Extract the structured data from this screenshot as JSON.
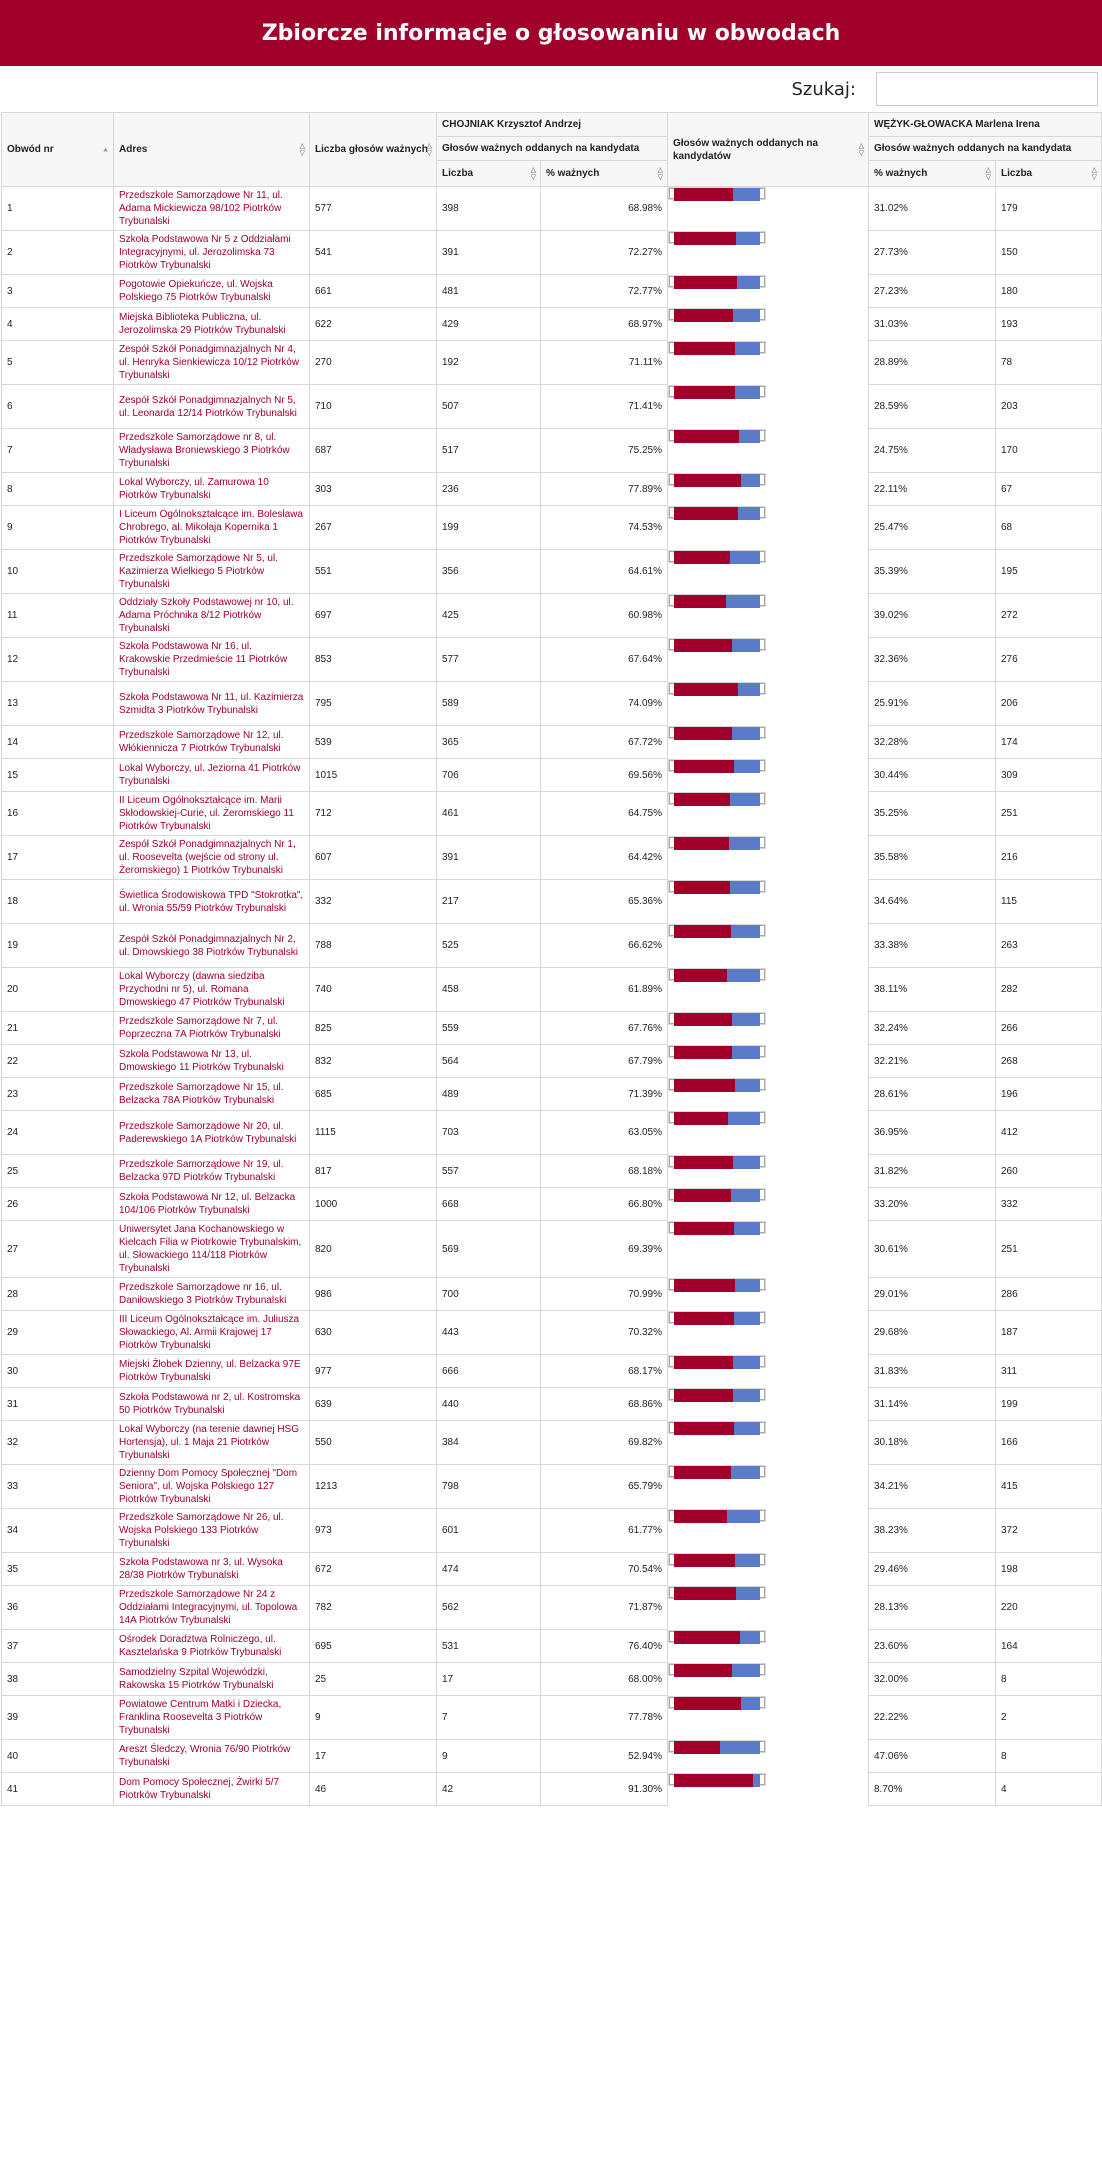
{
  "page_title": "Zbiorcze informacje o głosowaniu w obwodach",
  "search": {
    "label": "Szukaj:",
    "value": ""
  },
  "headers": {
    "obwod": "Obwód nr",
    "adres": "Adres",
    "liczba_glosow": "Liczba głosów ważnych",
    "cand1_name": "CHOJNIAK Krzysztof Andrzej",
    "cand1_sub": "Głosów ważnych oddanych na kandydata",
    "cand1_liczba": "Liczba",
    "cand1_pct": "% ważnych",
    "bar_header": "Głosów ważnych oddanych na kandydatów",
    "cand2_name": "WĘŻYK-GŁOWACKA Marlena Irena",
    "cand2_sub": "Głosów ważnych oddanych na kandydata",
    "cand2_pct": "% ważnych",
    "cand2_liczba": "Liczba"
  },
  "colors": {
    "cand1": "#a0002a",
    "cand2": "#5a7cc8",
    "header_bg": "#a0002a"
  },
  "rows": [
    {
      "nr": "1",
      "adres": "Przedszkole Samorządowe Nr 11, ul. Adama Mickiewicza 98/102 Piotrków Trybunalski",
      "glosy": "577",
      "c1": "398",
      "c1p": "68.98%",
      "c2p": "31.02%",
      "c2": "179",
      "share": 0.6898
    },
    {
      "nr": "2",
      "adres": "Szkoła Podstawowa Nr 5 z Oddziałami Integracyjnymi, ul. Jerozolimska 73 Piotrków Trybunalski",
      "glosy": "541",
      "c1": "391",
      "c1p": "72.27%",
      "c2p": "27.73%",
      "c2": "150",
      "share": 0.7227
    },
    {
      "nr": "3",
      "adres": "Pogotowie Opiekuńcze, ul. Wojska Polskiego 75 Piotrków Trybunalski",
      "glosy": "661",
      "c1": "481",
      "c1p": "72.77%",
      "c2p": "27.23%",
      "c2": "180",
      "share": 0.7277
    },
    {
      "nr": "4",
      "adres": "Miejska Biblioteka Publiczna, ul. Jerozolimska 29 Piotrków Trybunalski",
      "glosy": "622",
      "c1": "429",
      "c1p": "68.97%",
      "c2p": "31.03%",
      "c2": "193",
      "share": 0.6897
    },
    {
      "nr": "5",
      "adres": "Zespół Szkół Ponadgimnazjalnych Nr 4, ul. Henryka Sienkiewicza 10/12 Piotrków Trybunalski",
      "glosy": "270",
      "c1": "192",
      "c1p": "71.11%",
      "c2p": "28.89%",
      "c2": "78",
      "share": 0.7111
    },
    {
      "nr": "6",
      "adres": "Zespół Szkół Ponadgimnazjalnych Nr 5, ul. Leonarda 12/14 Piotrków Trybunalski",
      "glosy": "710",
      "c1": "507",
      "c1p": "71.41%",
      "c2p": "28.59%",
      "c2": "203",
      "share": 0.7141
    },
    {
      "nr": "7",
      "adres": "Przedszkole Samorządowe nr 8, ul. Władysława Broniewskiego 3 Piotrków Trybunalski",
      "glosy": "687",
      "c1": "517",
      "c1p": "75.25%",
      "c2p": "24.75%",
      "c2": "170",
      "share": 0.7525
    },
    {
      "nr": "8",
      "adres": "Lokal Wyborczy, ul. Zamurowa 10 Piotrków Trybunalski",
      "glosy": "303",
      "c1": "236",
      "c1p": "77.89%",
      "c2p": "22.11%",
      "c2": "67",
      "share": 0.7789
    },
    {
      "nr": "9",
      "adres": "I Liceum Ogólnokształcące im. Bolesława Chrobrego, al. Mikołaja Kopernika 1 Piotrków Trybunalski",
      "glosy": "267",
      "c1": "199",
      "c1p": "74.53%",
      "c2p": "25.47%",
      "c2": "68",
      "share": 0.7453
    },
    {
      "nr": "10",
      "adres": "Przedszkole Samorządowe Nr 5, ul. Kazimierza Wielkiego 5 Piotrków Trybunalski",
      "glosy": "551",
      "c1": "356",
      "c1p": "64.61%",
      "c2p": "35.39%",
      "c2": "195",
      "share": 0.6461
    },
    {
      "nr": "11",
      "adres": "Oddziały Szkoły Podstawowej nr 10, ul. Adama Próchnika 8/12 Piotrków Trybunalski",
      "glosy": "697",
      "c1": "425",
      "c1p": "60.98%",
      "c2p": "39.02%",
      "c2": "272",
      "share": 0.6098
    },
    {
      "nr": "12",
      "adres": "Szkoła Podstawowa Nr 16, ul. Krakowskie Przedmieście 11 Piotrków Trybunalski",
      "glosy": "853",
      "c1": "577",
      "c1p": "67.64%",
      "c2p": "32.36%",
      "c2": "276",
      "share": 0.6764
    },
    {
      "nr": "13",
      "adres": "Szkoła Podstawowa Nr 11, ul. Kazimierza Szmidta 3 Piotrków Trybunalski",
      "glosy": "795",
      "c1": "589",
      "c1p": "74.09%",
      "c2p": "25.91%",
      "c2": "206",
      "share": 0.7409
    },
    {
      "nr": "14",
      "adres": "Przedszkole Samorządowe Nr 12, ul. Włókiennicza 7 Piotrków Trybunalski",
      "glosy": "539",
      "c1": "365",
      "c1p": "67.72%",
      "c2p": "32.28%",
      "c2": "174",
      "share": 0.6772
    },
    {
      "nr": "15",
      "adres": "Lokal Wyborczy, ul. Jeziorna 41 Piotrków Trybunalski",
      "glosy": "1015",
      "c1": "706",
      "c1p": "69.56%",
      "c2p": "30.44%",
      "c2": "309",
      "share": 0.6956
    },
    {
      "nr": "16",
      "adres": "II Liceum Ogólnokształcące im. Marii Skłodowskiej-Curie, ul. Żeromskiego 11 Piotrków Trybunalski",
      "glosy": "712",
      "c1": "461",
      "c1p": "64.75%",
      "c2p": "35.25%",
      "c2": "251",
      "share": 0.6475
    },
    {
      "nr": "17",
      "adres": "Zespół Szkół Ponadgimnazjalnych Nr 1, ul. Roosevelta (wejście od strony ul. Żeromskiego) 1 Piotrków Trybunalski",
      "glosy": "607",
      "c1": "391",
      "c1p": "64.42%",
      "c2p": "35.58%",
      "c2": "216",
      "share": 0.6442
    },
    {
      "nr": "18",
      "adres": "Świetlica Środowiskowa TPD \"Stokrotka\", ul. Wronia 55/59 Piotrków Trybunalski",
      "glosy": "332",
      "c1": "217",
      "c1p": "65.36%",
      "c2p": "34.64%",
      "c2": "115",
      "share": 0.6536
    },
    {
      "nr": "19",
      "adres": "Zespół Szkół Ponadgimnazjalnych Nr 2, ul. Dmowskiego 38 Piotrków Trybunalski",
      "glosy": "788",
      "c1": "525",
      "c1p": "66.62%",
      "c2p": "33.38%",
      "c2": "263",
      "share": 0.6662
    },
    {
      "nr": "20",
      "adres": "Lokal Wyborczy (dawna siedziba Przychodni nr 5), ul. Romana Dmowskiego 47 Piotrków Trybunalski",
      "glosy": "740",
      "c1": "458",
      "c1p": "61.89%",
      "c2p": "38.11%",
      "c2": "282",
      "share": 0.6189
    },
    {
      "nr": "21",
      "adres": "Przedszkole Samorządowe Nr 7, ul. Poprzeczna 7A Piotrków Trybunalski",
      "glosy": "825",
      "c1": "559",
      "c1p": "67.76%",
      "c2p": "32.24%",
      "c2": "266",
      "share": 0.6776
    },
    {
      "nr": "22",
      "adres": "Szkoła Podstawowa Nr 13, ul. Dmowskiego 11 Piotrków Trybunalski",
      "glosy": "832",
      "c1": "564",
      "c1p": "67.79%",
      "c2p": "32.21%",
      "c2": "268",
      "share": 0.6779
    },
    {
      "nr": "23",
      "adres": "Przedszkole Samorządowe Nr 15, ul. Belzacka 78A Piotrków Trybunalski",
      "glosy": "685",
      "c1": "489",
      "c1p": "71.39%",
      "c2p": "28.61%",
      "c2": "196",
      "share": 0.7139
    },
    {
      "nr": "24",
      "adres": "Przedszkole Samorządowe Nr 20, ul. Paderewskiego 1A Piotrków Trybunalski",
      "glosy": "1115",
      "c1": "703",
      "c1p": "63.05%",
      "c2p": "36.95%",
      "c2": "412",
      "share": 0.6305
    },
    {
      "nr": "25",
      "adres": "Przedszkole Samorządowe Nr 19, ul. Belzacka 97D Piotrków Trybunalski",
      "glosy": "817",
      "c1": "557",
      "c1p": "68.18%",
      "c2p": "31.82%",
      "c2": "260",
      "share": 0.6818
    },
    {
      "nr": "26",
      "adres": "Szkoła Podstawowa Nr 12, ul. Belzacka 104/106 Piotrków Trybunalski",
      "glosy": "1000",
      "c1": "668",
      "c1p": "66.80%",
      "c2p": "33.20%",
      "c2": "332",
      "share": 0.668
    },
    {
      "nr": "27",
      "adres": "Uniwersytet Jana Kochanowskiego w Kielcach Filia w Piotrkowie Trybunalskim, ul. Słowackiego 114/118 Piotrków Trybunalski",
      "glosy": "820",
      "c1": "569",
      "c1p": "69.39%",
      "c2p": "30.61%",
      "c2": "251",
      "share": 0.6939
    },
    {
      "nr": "28",
      "adres": "Przedszkole Samorządowe nr 16, ul. Daniłowskiego 3 Piotrków Trybunalski",
      "glosy": "986",
      "c1": "700",
      "c1p": "70.99%",
      "c2p": "29.01%",
      "c2": "286",
      "share": 0.7099
    },
    {
      "nr": "29",
      "adres": "III Liceum Ogólnokształcące im. Juliusza Słowackiego, Al. Armii Krajowej 17 Piotrków Trybunalski",
      "glosy": "630",
      "c1": "443",
      "c1p": "70.32%",
      "c2p": "29.68%",
      "c2": "187",
      "share": 0.7032
    },
    {
      "nr": "30",
      "adres": "Miejski Żłobek Dzienny, ul. Belzacka 97E Piotrków Trybunalski",
      "glosy": "977",
      "c1": "666",
      "c1p": "68.17%",
      "c2p": "31.83%",
      "c2": "311",
      "share": 0.6817
    },
    {
      "nr": "31",
      "adres": "Szkoła Podstawowa nr 2, ul. Kostromska 50 Piotrków Trybunalski",
      "glosy": "639",
      "c1": "440",
      "c1p": "68.86%",
      "c2p": "31.14%",
      "c2": "199",
      "share": 0.6886
    },
    {
      "nr": "32",
      "adres": "Lokal Wyborczy (na terenie dawnej HSG Hortensja), ul. 1 Maja 21 Piotrków Trybunalski",
      "glosy": "550",
      "c1": "384",
      "c1p": "69.82%",
      "c2p": "30.18%",
      "c2": "166",
      "share": 0.6982
    },
    {
      "nr": "33",
      "adres": "Dzienny Dom Pomocy Społecznej \"Dom Seniora\", ul. Wojska Polskiego 127 Piotrków Trybunalski",
      "glosy": "1213",
      "c1": "798",
      "c1p": "65.79%",
      "c2p": "34.21%",
      "c2": "415",
      "share": 0.6579
    },
    {
      "nr": "34",
      "adres": "Przedszkole Samorządowe Nr 26, ul. Wojska Polskiego 133 Piotrków Trybunalski",
      "glosy": "973",
      "c1": "601",
      "c1p": "61.77%",
      "c2p": "38.23%",
      "c2": "372",
      "share": 0.6177
    },
    {
      "nr": "35",
      "adres": "Szkoła Podstawowa nr 3, ul. Wysoka 28/38 Piotrków Trybunalski",
      "glosy": "672",
      "c1": "474",
      "c1p": "70.54%",
      "c2p": "29.46%",
      "c2": "198",
      "share": 0.7054
    },
    {
      "nr": "36",
      "adres": "Przedszkole Samorządowe Nr 24 z Oddziałami Integracyjnymi, ul. Topolowa 14A Piotrków Trybunalski",
      "glosy": "782",
      "c1": "562",
      "c1p": "71.87%",
      "c2p": "28.13%",
      "c2": "220",
      "share": 0.7187
    },
    {
      "nr": "37",
      "adres": "Ośrodek Doradztwa Rolniczego, ul. Kasztelańska 9 Piotrków Trybunalski",
      "glosy": "695",
      "c1": "531",
      "c1p": "76.40%",
      "c2p": "23.60%",
      "c2": "164",
      "share": 0.764
    },
    {
      "nr": "38",
      "adres": "Samodzielny Szpital Wojewódzki, Rakowska 15 Piotrków Trybunalski",
      "glosy": "25",
      "c1": "17",
      "c1p": "68.00%",
      "c2p": "32.00%",
      "c2": "8",
      "share": 0.68
    },
    {
      "nr": "39",
      "adres": "Powiatowe Centrum Matki i Dziecka, Franklina Roosevelta 3 Piotrków Trybunalski",
      "glosy": "9",
      "c1": "7",
      "c1p": "77.78%",
      "c2p": "22.22%",
      "c2": "2",
      "share": 0.7778
    },
    {
      "nr": "40",
      "adres": "Areszt Śledczy, Wronia 76/90 Piotrków Trybunalski",
      "glosy": "17",
      "c1": "9",
      "c1p": "52.94%",
      "c2p": "47.06%",
      "c2": "8",
      "share": 0.5294
    },
    {
      "nr": "41",
      "adres": "Dom Pomocy Społecznej, Żwirki 5/7 Piotrków Trybunalski",
      "glosy": "46",
      "c1": "42",
      "c1p": "91.30%",
      "c2p": "8.70%",
      "c2": "4",
      "share": 0.913
    }
  ]
}
